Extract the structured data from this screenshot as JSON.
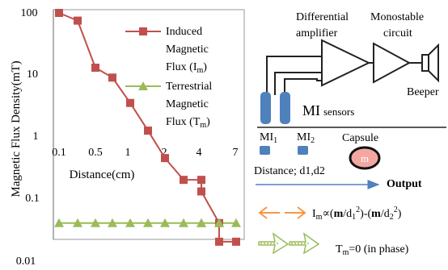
{
  "chart_data": {
    "type": "line",
    "title": "",
    "xlabel": "Distance(cm)",
    "ylabel": "Magnetic Flux Density(mT)",
    "y_scale": "log",
    "ylim": [
      0.01,
      100
    ],
    "ytick_labels": [
      "100",
      "10",
      "1",
      "0.1",
      "0.01"
    ],
    "xtick_labels": [
      "0.1",
      "0.5",
      "1",
      "2",
      "4",
      "7"
    ],
    "x": [
      0.1,
      0.3,
      0.5,
      0.75,
      1,
      1.5,
      2,
      2.5,
      3,
      3.5,
      4,
      5,
      7
    ],
    "series": [
      {
        "name_lines": [
          "Induced",
          "Magnetic",
          "Flux (I",
          "m",
          ")"
        ],
        "color": "#c0504d",
        "marker": "square",
        "values": [
          100,
          75,
          13,
          9,
          3.5,
          1.25,
          0.45,
          0.2,
          0.2,
          0.13,
          0.04,
          0.02,
          0.02
        ]
      },
      {
        "name_lines": [
          "Terrestrial",
          "Magnetic",
          "Flux (T",
          "m",
          ")"
        ],
        "color": "#9bbb59",
        "marker": "triangle",
        "values": [
          0.04,
          0.04,
          0.04,
          0.04,
          0.04,
          0.04,
          0.04,
          0.04,
          0.04,
          0.04,
          0.04,
          0.04,
          0.04
        ]
      }
    ],
    "legend": "inside-top-right"
  },
  "diagram": {
    "differential_amplifier": [
      "Differential",
      "amplifier"
    ],
    "monostable_circuit": [
      "Monostable",
      "circuit"
    ],
    "beeper": "Beeper",
    "mi_sensors": [
      "MI",
      "sensors"
    ],
    "mi1": [
      "MI",
      "1"
    ],
    "mi2": [
      "MI",
      "2"
    ],
    "capsule": "Capsule",
    "capsule_letter": "m",
    "distance": "Distance; d1,d2",
    "output": "Output",
    "formula": {
      "lhs": [
        "I",
        "m"
      ],
      "mid": "∝(",
      "m1": "m",
      "d1": "/d",
      "d1sub": "1",
      "d1sup": "2",
      "close1": ")-(",
      "m2": "m",
      "d2": "/d",
      "d2sub": "2",
      "d2sup": "2",
      "close2": ")"
    },
    "in_phase": [
      "T",
      "m",
      "=0 (in phase)"
    ],
    "colors": {
      "sensor": "#4f81bd",
      "capsule": "#f4a7a1",
      "arrow_orange": "#f79646",
      "arrow_green": "#9bbb59",
      "arrow_blue": "#4f81bd"
    }
  }
}
